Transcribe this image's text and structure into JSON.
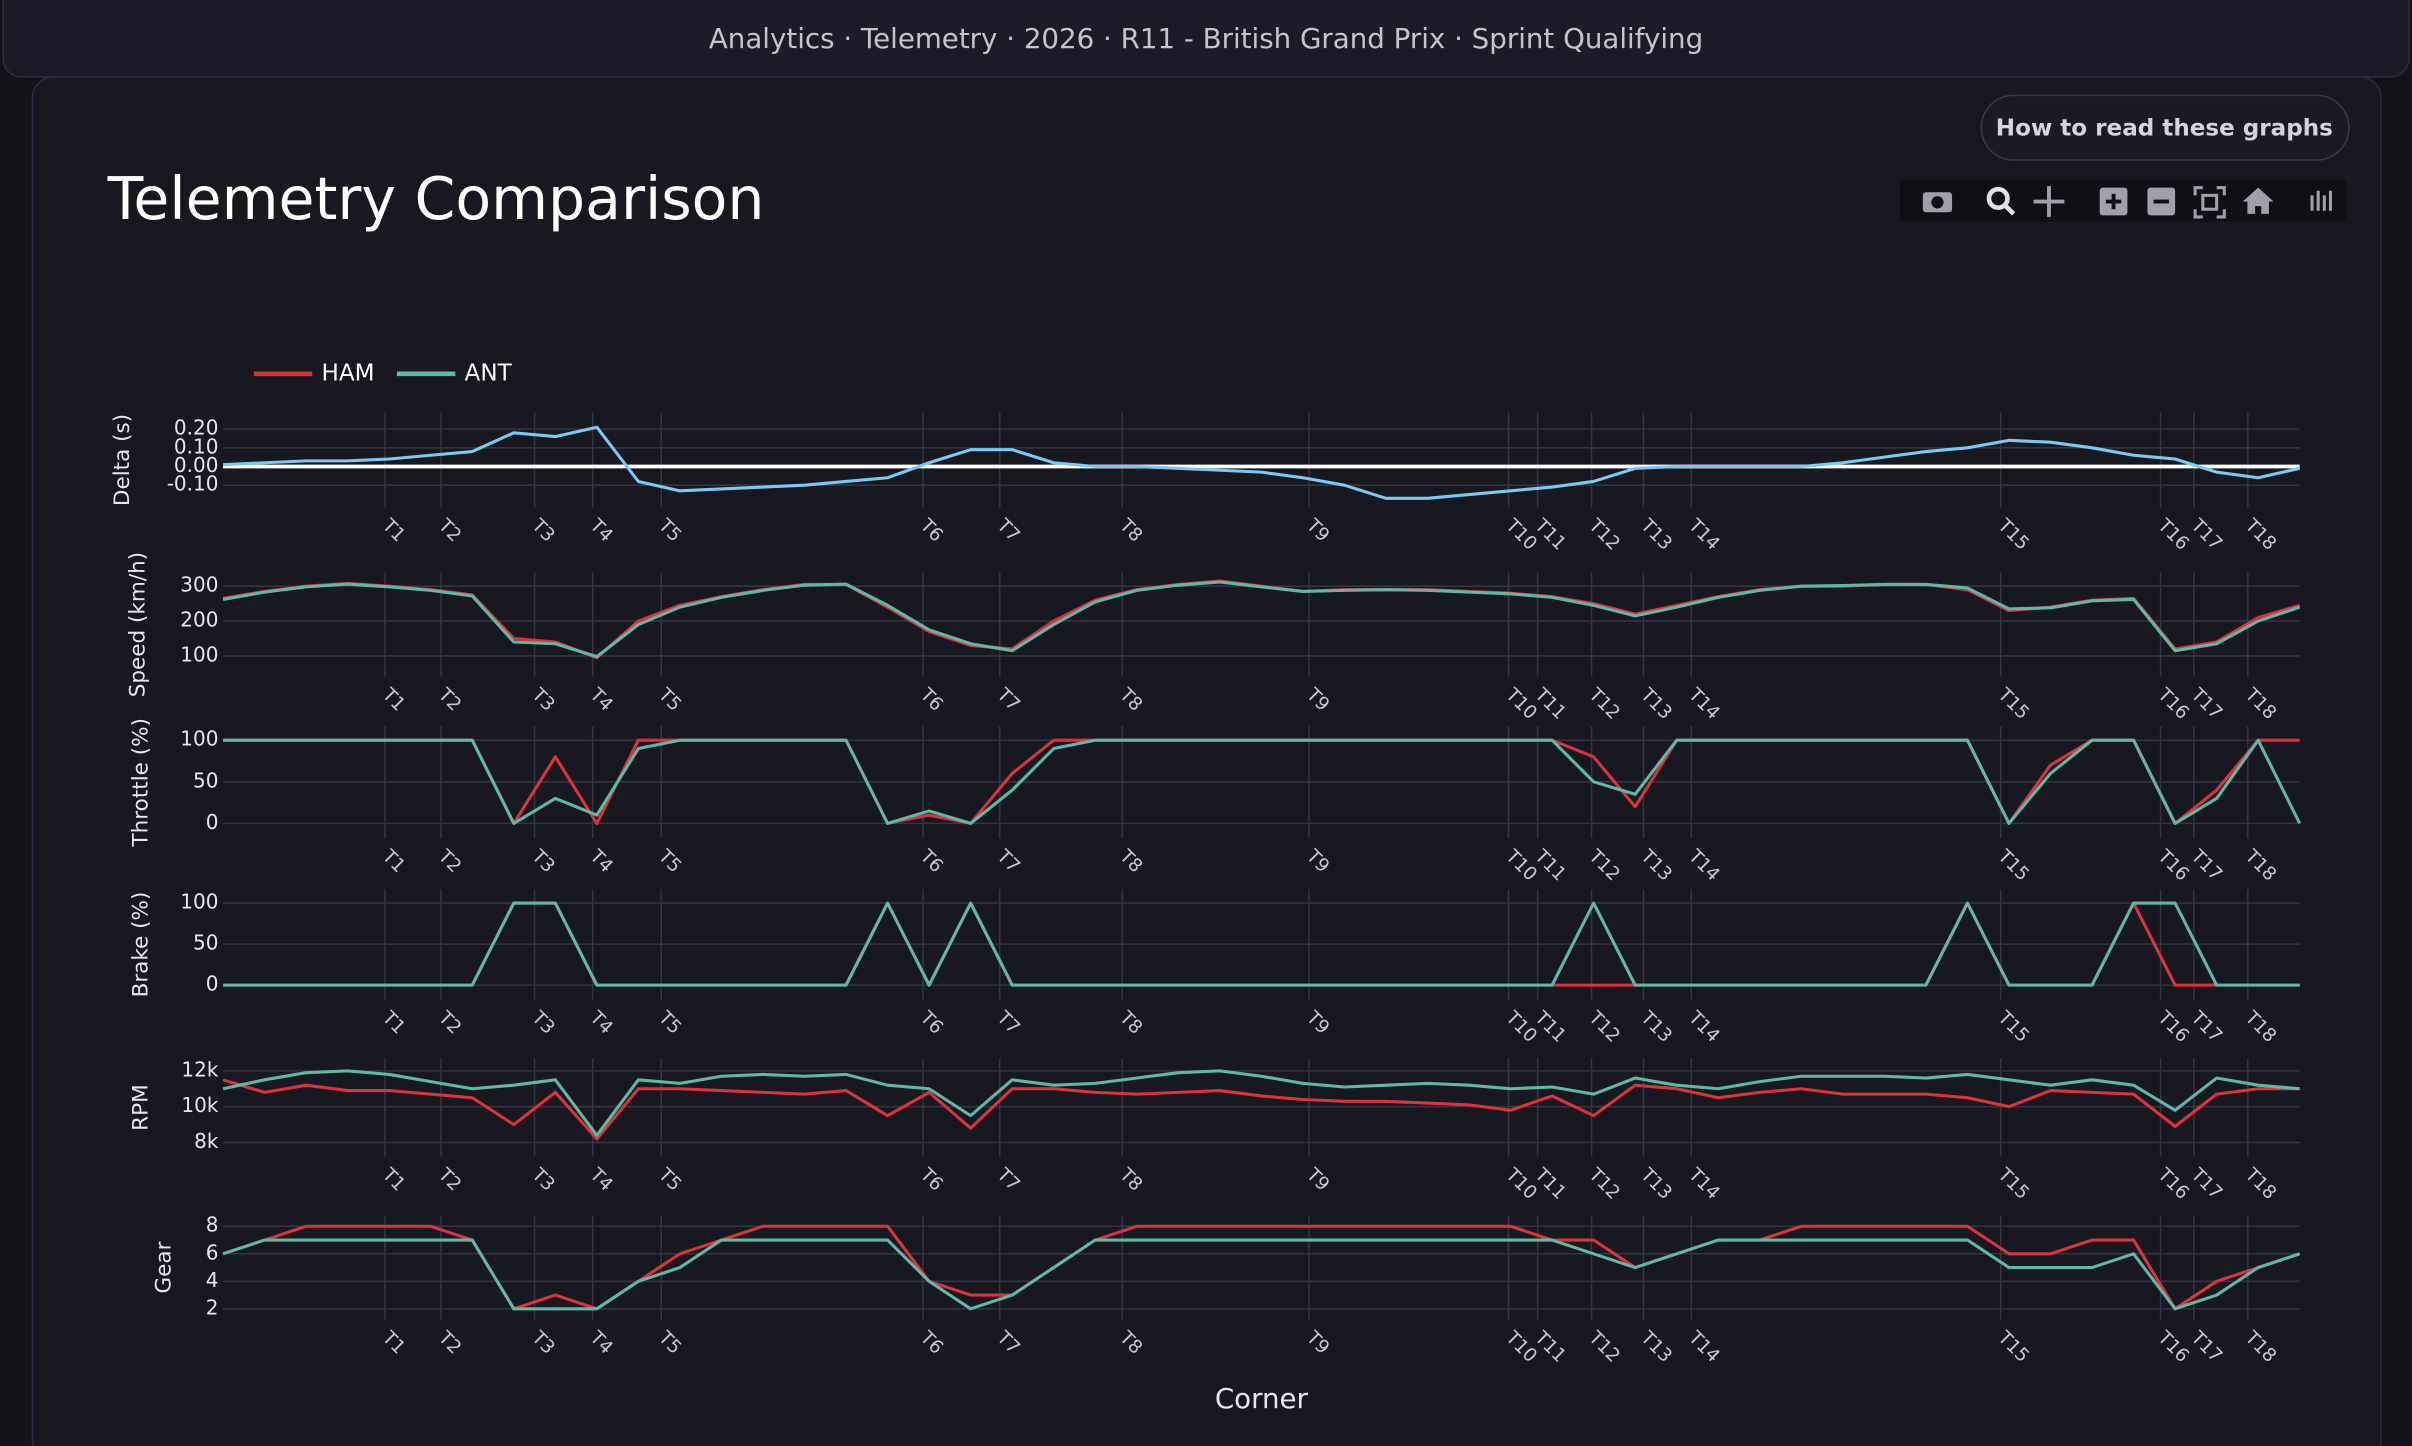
{
  "header": {
    "breadcrumb": "Analytics · Telemetry · 2026 · R11 - British Grand Prix · Sprint Qualifying"
  },
  "help_button": "How to read these graphs",
  "chart_data": {
    "type": "line",
    "title": "Telemetry Comparison",
    "xlabel": "Corner",
    "grid": true,
    "x": [
      0,
      2,
      4,
      6,
      8,
      10,
      12,
      14,
      16,
      18,
      20,
      22,
      24,
      26,
      28,
      30,
      32,
      34,
      36,
      38,
      40,
      42,
      44,
      46,
      48,
      50,
      52,
      54,
      56,
      58,
      60,
      62,
      64,
      66,
      68,
      70,
      72,
      74,
      76,
      78,
      80,
      82,
      84,
      86,
      88,
      90,
      92,
      94,
      96,
      98,
      100
    ],
    "xlim": [
      0,
      100
    ],
    "xticks": [
      {
        "value": 7.8,
        "label": "T1"
      },
      {
        "value": 10.5,
        "label": "T2"
      },
      {
        "value": 15.0,
        "label": "T3"
      },
      {
        "value": 17.8,
        "label": "T4"
      },
      {
        "value": 21.1,
        "label": "T5"
      },
      {
        "value": 33.7,
        "label": "T6"
      },
      {
        "value": 37.4,
        "label": "T7"
      },
      {
        "value": 43.3,
        "label": "T8"
      },
      {
        "value": 52.3,
        "label": "T9"
      },
      {
        "value": 61.9,
        "label": "T10"
      },
      {
        "value": 63.3,
        "label": "T11"
      },
      {
        "value": 65.9,
        "label": "T12"
      },
      {
        "value": 68.4,
        "label": "T13"
      },
      {
        "value": 70.7,
        "label": "T14"
      },
      {
        "value": 85.6,
        "label": "T15"
      },
      {
        "value": 93.3,
        "label": "T16"
      },
      {
        "value": 94.9,
        "label": "T17"
      },
      {
        "value": 97.5,
        "label": "T18"
      }
    ],
    "legend": [
      {
        "name": "HAM",
        "color": "#d8343a"
      },
      {
        "name": "ANT",
        "color": "#5fb8a5"
      }
    ],
    "panels": [
      {
        "ylabel": "Delta (s)",
        "ylim": [
          -0.22,
          0.29
        ],
        "zeroline": true,
        "yticks": [
          {
            "value": -0.1,
            "label": "-0.10"
          },
          {
            "value": 0,
            "label": "0.00"
          },
          {
            "value": 0.1,
            "label": "0.10"
          },
          {
            "value": 0.2,
            "label": "0.20"
          }
        ],
        "series": [
          {
            "color": "#7cc8f5",
            "values": [
              0.01,
              0.02,
              0.03,
              0.03,
              0.04,
              0.06,
              0.08,
              0.18,
              0.16,
              0.21,
              -0.08,
              -0.13,
              -0.12,
              -0.11,
              -0.1,
              -0.08,
              -0.06,
              0.02,
              0.09,
              0.09,
              0.02,
              0,
              0,
              -0.01,
              -0.02,
              -0.03,
              -0.06,
              -0.1,
              -0.17,
              -0.17,
              -0.15,
              -0.13,
              -0.11,
              -0.08,
              -0.01,
              0,
              0,
              0,
              0,
              0.02,
              0.05,
              0.08,
              0.1,
              0.14,
              0.13,
              0.1,
              0.06,
              0.04,
              -0.03,
              -0.06,
              -0.01
            ]
          }
        ]
      },
      {
        "ylabel": "Speed (km/h)",
        "ylim": [
          40,
          340
        ],
        "yticks": [
          100,
          200,
          300
        ],
        "series": [
          {
            "values": [
              265,
              285,
              300,
              308,
              300,
              290,
              275,
              150,
              140,
              95,
              200,
              245,
              270,
              290,
              305,
              305,
              240,
              170,
              130,
              120,
              200,
              260,
              290,
              305,
              315,
              300,
              285,
              290,
              290,
              290,
              285,
              280,
              270,
              250,
              220,
              245,
              270,
              290,
              300,
              300,
              305,
              305,
              290,
              230,
              240,
              260,
              265,
              120,
              140,
              210,
              245
            ]
          },
          {
            "values": [
              262,
              283,
              298,
              306,
              298,
              288,
              272,
              140,
              135,
              98,
              190,
              240,
              268,
              288,
              303,
              306,
              245,
              175,
              135,
              115,
              190,
              255,
              288,
              303,
              312,
              298,
              285,
              288,
              290,
              288,
              283,
              278,
              268,
              245,
              215,
              240,
              268,
              288,
              300,
              302,
              305,
              305,
              295,
              235,
              238,
              258,
              262,
              115,
              135,
              200,
              240
            ]
          }
        ]
      },
      {
        "ylabel": "Throttle (%)",
        "ylim": [
          -18,
          117
        ],
        "yticks": [
          0,
          50,
          100
        ],
        "series": [
          {
            "values": [
              100,
              100,
              100,
              100,
              100,
              100,
              100,
              0,
              80,
              0,
              100,
              100,
              100,
              100,
              100,
              100,
              0,
              10,
              0,
              60,
              100,
              100,
              100,
              100,
              100,
              100,
              100,
              100,
              100,
              100,
              100,
              100,
              100,
              80,
              20,
              100,
              100,
              100,
              100,
              100,
              100,
              100,
              100,
              0,
              70,
              100,
              100,
              0,
              40,
              100,
              100
            ]
          },
          {
            "values": [
              100,
              100,
              100,
              100,
              100,
              100,
              100,
              0,
              30,
              10,
              90,
              100,
              100,
              100,
              100,
              100,
              0,
              15,
              0,
              40,
              90,
              100,
              100,
              100,
              100,
              100,
              100,
              100,
              100,
              100,
              100,
              100,
              100,
              50,
              35,
              100,
              100,
              100,
              100,
              100,
              100,
              100,
              100,
              0,
              60,
              100,
              100,
              0,
              30,
              100,
              0
            ]
          }
        ]
      },
      {
        "ylabel": "Brake (%)",
        "ylim": [
          -18,
          117
        ],
        "yticks": [
          0,
          50,
          100
        ],
        "series": [
          {
            "values": [
              0,
              0,
              0,
              0,
              0,
              0,
              0,
              100,
              100,
              0,
              0,
              0,
              0,
              0,
              0,
              0,
              100,
              0,
              100,
              0,
              0,
              0,
              0,
              0,
              0,
              0,
              0,
              0,
              0,
              0,
              0,
              0,
              0,
              0,
              0,
              0,
              0,
              0,
              0,
              0,
              0,
              0,
              100,
              0,
              0,
              0,
              100,
              0,
              0,
              0,
              0
            ]
          },
          {
            "values": [
              0,
              0,
              0,
              0,
              0,
              0,
              0,
              100,
              100,
              0,
              0,
              0,
              0,
              0,
              0,
              0,
              100,
              0,
              100,
              0,
              0,
              0,
              0,
              0,
              0,
              0,
              0,
              0,
              0,
              0,
              0,
              0,
              0,
              100,
              0,
              0,
              0,
              0,
              0,
              0,
              0,
              0,
              100,
              0,
              0,
              0,
              100,
              100,
              0,
              0,
              0
            ]
          }
        ]
      },
      {
        "ylabel": "RPM",
        "ylim": [
          7200,
          12700
        ],
        "yticks": [
          {
            "value": 8000,
            "label": "8k"
          },
          {
            "value": 10000,
            "label": "10k"
          },
          {
            "value": 12000,
            "label": "12k"
          }
        ],
        "series": [
          {
            "values": [
              11500,
              10800,
              11200,
              10900,
              10900,
              10700,
              10500,
              9000,
              10800,
              8200,
              11000,
              11000,
              10900,
              10800,
              10700,
              10900,
              9500,
              10800,
              8800,
              11000,
              11000,
              10800,
              10700,
              10800,
              10900,
              10600,
              10400,
              10300,
              10300,
              10200,
              10100,
              9800,
              10600,
              9500,
              11200,
              11000,
              10500,
              10800,
              11000,
              10700,
              10700,
              10700,
              10500,
              10000,
              10900,
              10800,
              10700,
              8900,
              10700,
              11000,
              11000
            ]
          },
          {
            "values": [
              11000,
              11500,
              11900,
              12000,
              11800,
              11400,
              11000,
              11200,
              11500,
              8400,
              11500,
              11300,
              11700,
              11800,
              11700,
              11800,
              11200,
              11000,
              9500,
              11500,
              11200,
              11300,
              11600,
              11900,
              12000,
              11700,
              11300,
              11100,
              11200,
              11300,
              11200,
              11000,
              11100,
              10700,
              11600,
              11200,
              11000,
              11400,
              11700,
              11700,
              11700,
              11600,
              11800,
              11500,
              11200,
              11500,
              11200,
              9800,
              11600,
              11200,
              11000
            ]
          }
        ]
      },
      {
        "ylabel": "Gear",
        "ylim": [
          1.2,
          8.8
        ],
        "yticks": [
          2,
          4,
          6,
          8
        ],
        "series": [
          {
            "values": [
              6,
              7,
              8,
              8,
              8,
              8,
              7,
              2,
              3,
              2,
              4,
              6,
              7,
              8,
              8,
              8,
              8,
              4,
              3,
              3,
              5,
              7,
              8,
              8,
              8,
              8,
              8,
              8,
              8,
              8,
              8,
              8,
              7,
              7,
              5,
              6,
              7,
              7,
              8,
              8,
              8,
              8,
              8,
              6,
              6,
              7,
              7,
              2,
              4,
              5,
              6
            ]
          },
          {
            "values": [
              6,
              7,
              7,
              7,
              7,
              7,
              7,
              2,
              2,
              2,
              4,
              5,
              7,
              7,
              7,
              7,
              7,
              4,
              2,
              3,
              5,
              7,
              7,
              7,
              7,
              7,
              7,
              7,
              7,
              7,
              7,
              7,
              7,
              6,
              5,
              6,
              7,
              7,
              7,
              7,
              7,
              7,
              7,
              5,
              5,
              5,
              6,
              2,
              3,
              5,
              6
            ]
          }
        ]
      }
    ]
  }
}
